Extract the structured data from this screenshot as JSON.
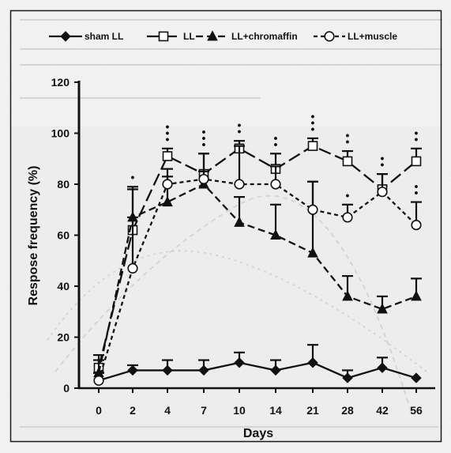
{
  "chart_data": {
    "type": "line",
    "title": "",
    "xlabel": "Days",
    "ylabel": "Respose frequency (%)",
    "categories": [
      "0",
      "2",
      "4",
      "7",
      "10",
      "14",
      "21",
      "28",
      "42",
      "56"
    ],
    "ylim": [
      0,
      120
    ],
    "yticks": [
      0,
      20,
      40,
      60,
      80,
      100,
      120
    ],
    "legend_position": "top",
    "grid": false,
    "series": [
      {
        "name": "sham LL",
        "marker": "diamond-filled",
        "dash": "solid",
        "values": [
          3,
          7,
          7,
          7,
          10,
          7,
          10,
          4,
          8,
          4
        ],
        "error": [
          3,
          2,
          4,
          4,
          4,
          4,
          7,
          3,
          4,
          0
        ]
      },
      {
        "name": "LL",
        "marker": "square-open",
        "dash": "long-dash",
        "values": [
          8,
          62,
          91,
          84,
          94,
          86,
          95,
          89,
          78,
          89
        ],
        "error": [
          5,
          17,
          3,
          8,
          3,
          6,
          3,
          4,
          6,
          5
        ]
      },
      {
        "name": "LL+chromaffin",
        "marker": "triangle-filled",
        "dash": "medium-dash",
        "values": [
          6,
          67,
          73,
          80,
          65,
          60,
          53,
          36,
          31,
          36
        ],
        "error": [
          5,
          11,
          10,
          5,
          10,
          12,
          28,
          8,
          5,
          7
        ]
      },
      {
        "name": "LL+muscle",
        "marker": "circle-open",
        "dash": "short-dash",
        "values": [
          3,
          47,
          80,
          82,
          80,
          80,
          70,
          67,
          77,
          64
        ],
        "error": [
          3,
          20,
          6,
          10,
          15,
          7,
          11,
          5,
          7,
          9
        ]
      }
    ],
    "significance": {
      "symbol": "•",
      "groups": [
        {
          "category": "2",
          "series": "LL",
          "count": 1
        },
        {
          "category": "4",
          "series": "LL",
          "count": 3
        },
        {
          "category": "7",
          "series": "LL",
          "count": 3
        },
        {
          "category": "10",
          "series": "LL",
          "count": 2
        },
        {
          "category": "14",
          "series": "LL",
          "count": 2
        },
        {
          "category": "21",
          "series": "LL",
          "count": 3
        },
        {
          "category": "28",
          "series": "LL",
          "count": 2
        },
        {
          "category": "42",
          "series": "LL",
          "count": 2
        },
        {
          "category": "56",
          "series": "LL",
          "count": 2
        },
        {
          "category": "28",
          "series": "LL+muscle",
          "count": 1
        },
        {
          "category": "56",
          "series": "LL+muscle",
          "count": 2
        }
      ]
    }
  }
}
